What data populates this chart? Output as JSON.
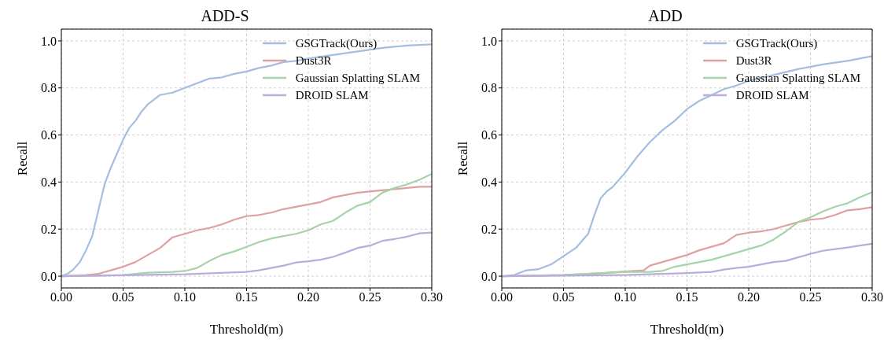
{
  "chart_data": [
    {
      "type": "line",
      "title": "ADD-S",
      "xlabel": "Threshold(m)",
      "ylabel": "Recall",
      "xlim": [
        0,
        0.3
      ],
      "ylim": [
        -0.05,
        1.05
      ],
      "xticks": [
        {
          "value": 0,
          "label": "0.00"
        },
        {
          "value": 0.05,
          "label": "0.05"
        },
        {
          "value": 0.1,
          "label": "0.10"
        },
        {
          "value": 0.15,
          "label": "0.15"
        },
        {
          "value": 0.2,
          "label": "0.20"
        },
        {
          "value": 0.25,
          "label": "0.25"
        },
        {
          "value": 0.3,
          "label": "0.30"
        }
      ],
      "yticks": [
        {
          "value": 0,
          "label": "0.0"
        },
        {
          "value": 0.2,
          "label": "0.2"
        },
        {
          "value": 0.4,
          "label": "0.4"
        },
        {
          "value": 0.6,
          "label": "0.6"
        },
        {
          "value": 0.8,
          "label": "0.8"
        },
        {
          "value": 1,
          "label": "1.0"
        }
      ],
      "grid": true,
      "legend": "top right",
      "marker": "none",
      "line_style": "solid",
      "series": [
        {
          "name": "GSGTrack(Ours)",
          "color": "#a4bedf",
          "x": [
            0,
            0.005,
            0.01,
            0.015,
            0.02,
            0.025,
            0.03,
            0.035,
            0.04,
            0.045,
            0.05,
            0.055,
            0.06,
            0.065,
            0.07,
            0.08,
            0.09,
            0.1,
            0.11,
            0.12,
            0.13,
            0.14,
            0.15,
            0.16,
            0.17,
            0.18,
            0.19,
            0.2,
            0.22,
            0.24,
            0.26,
            0.28,
            0.3
          ],
          "values": [
            0,
            0.01,
            0.03,
            0.06,
            0.11,
            0.17,
            0.28,
            0.39,
            0.46,
            0.52,
            0.58,
            0.63,
            0.66,
            0.7,
            0.73,
            0.77,
            0.78,
            0.8,
            0.82,
            0.84,
            0.845,
            0.86,
            0.87,
            0.885,
            0.895,
            0.91,
            0.915,
            0.925,
            0.94,
            0.955,
            0.97,
            0.98,
            0.985
          ]
        },
        {
          "name": "Dust3R",
          "color": "#e0a0a3",
          "x": [
            0,
            0.02,
            0.03,
            0.04,
            0.05,
            0.06,
            0.07,
            0.08,
            0.09,
            0.1,
            0.11,
            0.12,
            0.13,
            0.14,
            0.15,
            0.16,
            0.17,
            0.18,
            0.19,
            0.2,
            0.21,
            0.22,
            0.23,
            0.24,
            0.25,
            0.26,
            0.27,
            0.28,
            0.29,
            0.3
          ],
          "values": [
            0,
            0.005,
            0.01,
            0.025,
            0.04,
            0.06,
            0.09,
            0.12,
            0.165,
            0.18,
            0.195,
            0.205,
            0.22,
            0.24,
            0.255,
            0.26,
            0.27,
            0.285,
            0.295,
            0.305,
            0.315,
            0.335,
            0.345,
            0.355,
            0.36,
            0.365,
            0.37,
            0.375,
            0.38,
            0.38
          ]
        },
        {
          "name": "Gaussian Splatting SLAM",
          "color": "#a6d3a8",
          "x": [
            0,
            0.05,
            0.07,
            0.09,
            0.1,
            0.11,
            0.12,
            0.13,
            0.14,
            0.15,
            0.16,
            0.17,
            0.18,
            0.19,
            0.2,
            0.21,
            0.22,
            0.23,
            0.24,
            0.25,
            0.26,
            0.27,
            0.28,
            0.29,
            0.3
          ],
          "values": [
            0,
            0.005,
            0.015,
            0.018,
            0.022,
            0.035,
            0.065,
            0.09,
            0.105,
            0.125,
            0.145,
            0.16,
            0.17,
            0.18,
            0.195,
            0.22,
            0.235,
            0.27,
            0.3,
            0.315,
            0.355,
            0.375,
            0.39,
            0.41,
            0.435
          ]
        },
        {
          "name": "DROID SLAM",
          "color": "#b8addb",
          "x": [
            0,
            0.1,
            0.15,
            0.16,
            0.17,
            0.18,
            0.19,
            0.2,
            0.21,
            0.22,
            0.23,
            0.24,
            0.25,
            0.26,
            0.27,
            0.28,
            0.29,
            0.3
          ],
          "values": [
            0,
            0.008,
            0.018,
            0.025,
            0.035,
            0.045,
            0.058,
            0.063,
            0.07,
            0.082,
            0.1,
            0.12,
            0.13,
            0.15,
            0.158,
            0.168,
            0.182,
            0.185
          ]
        }
      ]
    },
    {
      "type": "line",
      "title": "ADD",
      "xlabel": "Threshold(m)",
      "ylabel": "Recall",
      "xlim": [
        0,
        0.3
      ],
      "ylim": [
        -0.05,
        1.05
      ],
      "xticks": [
        {
          "value": 0,
          "label": "0.00"
        },
        {
          "value": 0.05,
          "label": "0.05"
        },
        {
          "value": 0.1,
          "label": "0.10"
        },
        {
          "value": 0.15,
          "label": "0.15"
        },
        {
          "value": 0.2,
          "label": "0.20"
        },
        {
          "value": 0.25,
          "label": "0.25"
        },
        {
          "value": 0.3,
          "label": "0.30"
        }
      ],
      "yticks": [
        {
          "value": 0,
          "label": "0.0"
        },
        {
          "value": 0.2,
          "label": "0.2"
        },
        {
          "value": 0.4,
          "label": "0.4"
        },
        {
          "value": 0.6,
          "label": "0.6"
        },
        {
          "value": 0.8,
          "label": "0.8"
        },
        {
          "value": 1,
          "label": "1.0"
        }
      ],
      "grid": true,
      "legend": "top right",
      "marker": "none",
      "line_style": "solid",
      "series": [
        {
          "name": "GSGTrack(Ours)",
          "color": "#a4bedf",
          "x": [
            0,
            0.01,
            0.02,
            0.03,
            0.04,
            0.05,
            0.06,
            0.065,
            0.07,
            0.075,
            0.08,
            0.085,
            0.09,
            0.1,
            0.11,
            0.12,
            0.13,
            0.14,
            0.15,
            0.16,
            0.17,
            0.18,
            0.19,
            0.2,
            0.22,
            0.24,
            0.26,
            0.28,
            0.3
          ],
          "values": [
            0,
            0.005,
            0.025,
            0.03,
            0.05,
            0.085,
            0.12,
            0.15,
            0.18,
            0.26,
            0.33,
            0.36,
            0.38,
            0.44,
            0.51,
            0.57,
            0.62,
            0.66,
            0.71,
            0.745,
            0.77,
            0.795,
            0.81,
            0.83,
            0.855,
            0.88,
            0.9,
            0.915,
            0.935
          ]
        },
        {
          "name": "Dust3R",
          "color": "#e0a0a3",
          "x": [
            0,
            0.05,
            0.08,
            0.1,
            0.115,
            0.12,
            0.13,
            0.14,
            0.15,
            0.16,
            0.17,
            0.18,
            0.19,
            0.2,
            0.21,
            0.22,
            0.23,
            0.24,
            0.25,
            0.26,
            0.27,
            0.28,
            0.29,
            0.3
          ],
          "values": [
            0,
            0.005,
            0.012,
            0.02,
            0.025,
            0.045,
            0.06,
            0.075,
            0.09,
            0.11,
            0.125,
            0.14,
            0.175,
            0.185,
            0.19,
            0.2,
            0.215,
            0.23,
            0.24,
            0.245,
            0.26,
            0.28,
            0.285,
            0.293
          ]
        },
        {
          "name": "Gaussian Splatting SLAM",
          "color": "#a6d3a8",
          "x": [
            0,
            0.05,
            0.1,
            0.12,
            0.13,
            0.14,
            0.15,
            0.16,
            0.17,
            0.18,
            0.19,
            0.2,
            0.21,
            0.22,
            0.23,
            0.24,
            0.25,
            0.26,
            0.27,
            0.28,
            0.29,
            0.3
          ],
          "values": [
            0,
            0.005,
            0.018,
            0.018,
            0.022,
            0.04,
            0.05,
            0.06,
            0.07,
            0.085,
            0.1,
            0.115,
            0.13,
            0.155,
            0.19,
            0.23,
            0.25,
            0.275,
            0.295,
            0.31,
            0.335,
            0.357
          ]
        },
        {
          "name": "DROID SLAM",
          "color": "#b8addb",
          "x": [
            0,
            0.1,
            0.15,
            0.17,
            0.18,
            0.19,
            0.2,
            0.21,
            0.22,
            0.23,
            0.24,
            0.25,
            0.26,
            0.27,
            0.28,
            0.29,
            0.3
          ],
          "values": [
            0,
            0.005,
            0.013,
            0.018,
            0.028,
            0.035,
            0.04,
            0.05,
            0.06,
            0.065,
            0.08,
            0.095,
            0.108,
            0.115,
            0.122,
            0.13,
            0.138
          ]
        }
      ]
    }
  ]
}
